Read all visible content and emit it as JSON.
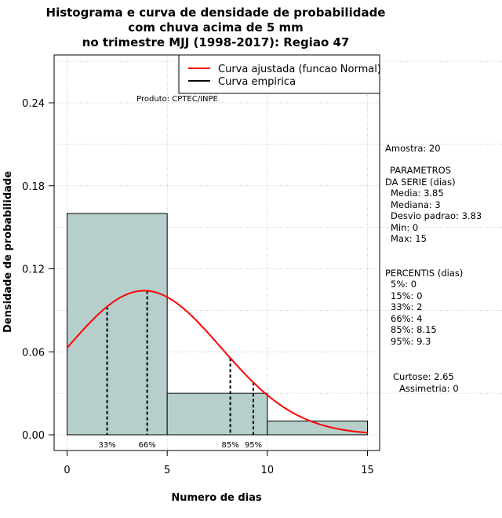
{
  "chart_data": {
    "type": "bar",
    "title_lines": [
      "Histograma e curva de densidade de probabilidade",
      "com chuva acima de 5 mm",
      "no trimestre MJJ (1998-2017): Regiao 47"
    ],
    "xlabel": "Numero de dias",
    "ylabel": "Densidade de probabilidade",
    "xlim": [
      -0.6,
      15.6
    ],
    "ylim": [
      0,
      0.27
    ],
    "x_ticks": [
      "0",
      "5",
      "10",
      "15"
    ],
    "x_tick_values": [
      0,
      5,
      10,
      15
    ],
    "y_ticks": [
      "0.00",
      "0.06",
      "0.12",
      "0.18",
      "0.24"
    ],
    "y_tick_values": [
      0,
      0.06,
      0.12,
      0.18,
      0.24
    ],
    "histogram": [
      {
        "from": 0,
        "to": 5,
        "density": 0.16
      },
      {
        "from": 5,
        "to": 10,
        "density": 0.03
      },
      {
        "from": 10,
        "to": 15,
        "density": 0.01
      }
    ],
    "fitted_curve": {
      "name": "Curva ajustada (funcao Normal)",
      "mean": 3.85,
      "sd": 3.83,
      "from": 0,
      "to": 15,
      "color": "#ff0000"
    },
    "empirical_curve": {
      "name": "Curva empirica",
      "color": "#000000"
    },
    "percentile_markers": [
      {
        "label": "33%",
        "x": 2
      },
      {
        "label": "66%",
        "x": 4
      },
      {
        "label": "85%",
        "x": 8.15
      },
      {
        "label": "95%",
        "x": 9.3
      }
    ],
    "legend_position": "top-right",
    "grid": true,
    "annotation": "Produto: CPTEC/INPE",
    "colors": {
      "bar_fill": "#b6cfcd",
      "curve": "#ff0000",
      "grid": "#bbbbbb"
    }
  },
  "side_panel": {
    "lines": [
      "Amostra: 20",
      "PARAMETROS",
      "DA SERIE (dias)",
      "Media: 3.85",
      "Mediana: 3",
      "Desvio padrao: 3.83",
      "Min: 0",
      "Max: 15",
      "PERCENTIS (dias)",
      "5%: 0",
      "15%: 0",
      "33%: 2",
      "66%: 4",
      "85%: 8.15",
      "95%: 9.3",
      "Curtose: 2.65",
      "Assimetria: 0"
    ]
  }
}
